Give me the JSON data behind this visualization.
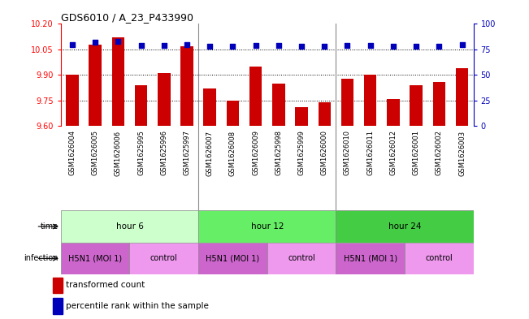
{
  "title": "GDS6010 / A_23_P433990",
  "samples": [
    "GSM1626004",
    "GSM1626005",
    "GSM1626006",
    "GSM1625995",
    "GSM1625996",
    "GSM1625997",
    "GSM1626007",
    "GSM1626008",
    "GSM1626009",
    "GSM1625998",
    "GSM1625999",
    "GSM1626000",
    "GSM1626010",
    "GSM1626011",
    "GSM1626012",
    "GSM1626001",
    "GSM1626002",
    "GSM1626003"
  ],
  "bar_values": [
    9.9,
    10.08,
    10.12,
    9.84,
    9.91,
    10.07,
    9.82,
    9.75,
    9.95,
    9.85,
    9.71,
    9.74,
    9.88,
    9.9,
    9.76,
    9.84,
    9.86,
    9.94
  ],
  "percentile_values": [
    80,
    82,
    83,
    79,
    79,
    80,
    78,
    78,
    79,
    79,
    78,
    78,
    79,
    79,
    78,
    78,
    78,
    80
  ],
  "bar_color": "#cc0000",
  "dot_color": "#0000bb",
  "ylim_left": [
    9.6,
    10.2
  ],
  "ylim_right": [
    0,
    100
  ],
  "yticks_left": [
    9.6,
    9.75,
    9.9,
    10.05,
    10.2
  ],
  "yticks_right": [
    0,
    25,
    50,
    75,
    100
  ],
  "hlines": [
    10.05,
    9.9,
    9.75
  ],
  "time_groups": [
    {
      "label": "hour 6",
      "start": 0,
      "end": 6,
      "color": "#ccffcc"
    },
    {
      "label": "hour 12",
      "start": 6,
      "end": 12,
      "color": "#66ee66"
    },
    {
      "label": "hour 24",
      "start": 12,
      "end": 18,
      "color": "#44cc44"
    }
  ],
  "infection_groups": [
    {
      "label": "H5N1 (MOI 1)",
      "start": 0,
      "end": 3,
      "color": "#cc66cc"
    },
    {
      "label": "control",
      "start": 3,
      "end": 6,
      "color": "#ee99ee"
    },
    {
      "label": "H5N1 (MOI 1)",
      "start": 6,
      "end": 9,
      "color": "#cc66cc"
    },
    {
      "label": "control",
      "start": 9,
      "end": 12,
      "color": "#ee99ee"
    },
    {
      "label": "H5N1 (MOI 1)",
      "start": 12,
      "end": 15,
      "color": "#cc66cc"
    },
    {
      "label": "control",
      "start": 15,
      "end": 18,
      "color": "#ee99ee"
    }
  ],
  "bar_width": 0.55,
  "bg_color": "#ffffff",
  "label_bg": "#dddddd",
  "legend_red_label": "transformed count",
  "legend_blue_label": "percentile rank within the sample",
  "time_label": "time",
  "infection_label": "infection"
}
